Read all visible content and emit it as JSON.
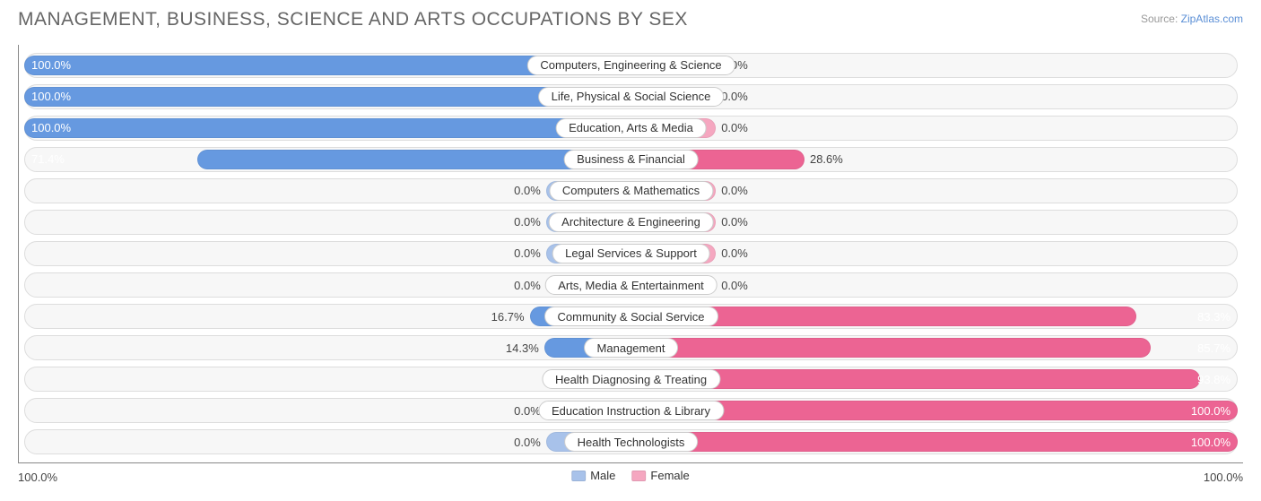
{
  "title": "MANAGEMENT, BUSINESS, SCIENCE AND ARTS OCCUPATIONS BY SEX",
  "source_label": "Source: ",
  "source_link": "ZipAtlas.com",
  "colors": {
    "male_full": "#6699e0",
    "male_stub": "#a8c2ea",
    "female_full": "#ec6493",
    "female_stub": "#f5a7c0",
    "track_bg": "#f7f7f7",
    "track_border": "#dddddd",
    "pill_bg": "#ffffff",
    "pill_border": "#cccccc",
    "text": "#444444",
    "title_color": "#666666"
  },
  "stub_width_pct": 14,
  "axis": {
    "left": "100.0%",
    "right": "100.0%"
  },
  "legend": {
    "male": {
      "label": "Male",
      "color": "#a8c2ea"
    },
    "female": {
      "label": "Female",
      "color": "#f5a7c0"
    }
  },
  "rows": [
    {
      "label": "Computers, Engineering & Science",
      "male": 100.0,
      "female": 0.0
    },
    {
      "label": "Life, Physical & Social Science",
      "male": 100.0,
      "female": 0.0
    },
    {
      "label": "Education, Arts & Media",
      "male": 100.0,
      "female": 0.0
    },
    {
      "label": "Business & Financial",
      "male": 71.4,
      "female": 28.6
    },
    {
      "label": "Computers & Mathematics",
      "male": 0.0,
      "female": 0.0
    },
    {
      "label": "Architecture & Engineering",
      "male": 0.0,
      "female": 0.0
    },
    {
      "label": "Legal Services & Support",
      "male": 0.0,
      "female": 0.0
    },
    {
      "label": "Arts, Media & Entertainment",
      "male": 0.0,
      "female": 0.0
    },
    {
      "label": "Community & Social Service",
      "male": 16.7,
      "female": 83.3
    },
    {
      "label": "Management",
      "male": 14.3,
      "female": 85.7
    },
    {
      "label": "Health Diagnosing & Treating",
      "male": 6.3,
      "female": 93.8
    },
    {
      "label": "Education Instruction & Library",
      "male": 0.0,
      "female": 100.0
    },
    {
      "label": "Health Technologists",
      "male": 0.0,
      "female": 100.0
    }
  ]
}
